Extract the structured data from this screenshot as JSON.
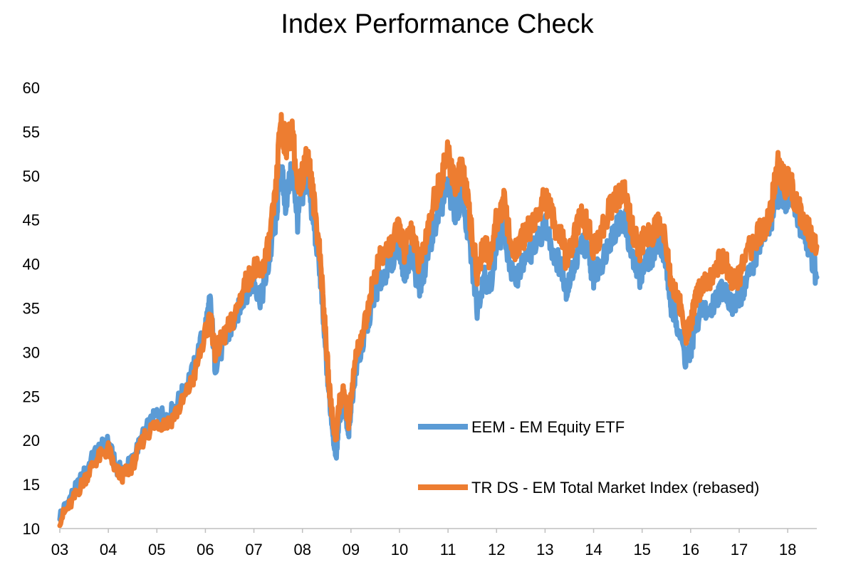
{
  "chart_data": {
    "type": "line",
    "title": "Index Performance Check",
    "xlabel": "",
    "ylabel": "",
    "ylim": [
      10,
      60
    ],
    "yticks": [
      10,
      15,
      20,
      25,
      30,
      35,
      40,
      45,
      50,
      55,
      60
    ],
    "xlim": [
      2003.0,
      2018.6
    ],
    "xticks": [
      {
        "value": 2003,
        "label": "03"
      },
      {
        "value": 2004,
        "label": "04"
      },
      {
        "value": 2005,
        "label": "05"
      },
      {
        "value": 2006,
        "label": "06"
      },
      {
        "value": 2007,
        "label": "07"
      },
      {
        "value": 2008,
        "label": "08"
      },
      {
        "value": 2009,
        "label": "09"
      },
      {
        "value": 2010,
        "label": "10"
      },
      {
        "value": 2011,
        "label": "11"
      },
      {
        "value": 2012,
        "label": "12"
      },
      {
        "value": 2013,
        "label": "13"
      },
      {
        "value": 2014,
        "label": "14"
      },
      {
        "value": 2015,
        "label": "15"
      },
      {
        "value": 2016,
        "label": "16"
      },
      {
        "value": 2017,
        "label": "17"
      },
      {
        "value": 2018,
        "label": "18"
      }
    ],
    "grid": false,
    "legend_position": "bottom-right",
    "series": [
      {
        "name": "EEM - EM Equity ETF",
        "color": "#5B9BD5",
        "points": [
          [
            2003.0,
            11.5
          ],
          [
            2003.25,
            13.8
          ],
          [
            2003.5,
            16.2
          ],
          [
            2003.75,
            18.8
          ],
          [
            2004.0,
            19.8
          ],
          [
            2004.15,
            17.0
          ],
          [
            2004.3,
            16.5
          ],
          [
            2004.5,
            17.8
          ],
          [
            2004.75,
            21.0
          ],
          [
            2005.0,
            23.0
          ],
          [
            2005.25,
            22.8
          ],
          [
            2005.5,
            25.0
          ],
          [
            2005.75,
            28.0
          ],
          [
            2006.0,
            33.0
          ],
          [
            2006.1,
            35.8
          ],
          [
            2006.2,
            28.5
          ],
          [
            2006.4,
            31.0
          ],
          [
            2006.6,
            33.5
          ],
          [
            2006.8,
            36.5
          ],
          [
            2007.0,
            38.0
          ],
          [
            2007.15,
            36.0
          ],
          [
            2007.3,
            40.0
          ],
          [
            2007.45,
            45.0
          ],
          [
            2007.55,
            51.0
          ],
          [
            2007.65,
            47.0
          ],
          [
            2007.8,
            51.0
          ],
          [
            2007.9,
            45.0
          ],
          [
            2008.0,
            48.0
          ],
          [
            2008.1,
            50.0
          ],
          [
            2008.2,
            46.0
          ],
          [
            2008.35,
            40.0
          ],
          [
            2008.45,
            32.0
          ],
          [
            2008.55,
            25.0
          ],
          [
            2008.65,
            20.0
          ],
          [
            2008.7,
            18.5
          ],
          [
            2008.75,
            22.5
          ],
          [
            2008.85,
            24.0
          ],
          [
            2008.95,
            20.5
          ],
          [
            2009.0,
            24.0
          ],
          [
            2009.1,
            28.0
          ],
          [
            2009.3,
            32.0
          ],
          [
            2009.45,
            36.0
          ],
          [
            2009.6,
            38.0
          ],
          [
            2009.8,
            40.0
          ],
          [
            2010.0,
            42.0
          ],
          [
            2010.1,
            39.0
          ],
          [
            2010.25,
            41.5
          ],
          [
            2010.4,
            37.0
          ],
          [
            2010.5,
            39.0
          ],
          [
            2010.7,
            44.0
          ],
          [
            2010.85,
            46.5
          ],
          [
            2011.0,
            48.5
          ],
          [
            2011.15,
            46.0
          ],
          [
            2011.3,
            47.5
          ],
          [
            2011.45,
            42.0
          ],
          [
            2011.6,
            35.0
          ],
          [
            2011.75,
            39.0
          ],
          [
            2011.85,
            37.0
          ],
          [
            2012.0,
            42.0
          ],
          [
            2012.15,
            44.0
          ],
          [
            2012.35,
            38.0
          ],
          [
            2012.5,
            39.5
          ],
          [
            2012.65,
            41.0
          ],
          [
            2012.8,
            42.0
          ],
          [
            2013.0,
            44.5
          ],
          [
            2013.2,
            41.0
          ],
          [
            2013.35,
            39.5
          ],
          [
            2013.45,
            37.0
          ],
          [
            2013.6,
            40.0
          ],
          [
            2013.75,
            42.5
          ],
          [
            2013.9,
            41.0
          ],
          [
            2014.0,
            38.5
          ],
          [
            2014.15,
            40.0
          ],
          [
            2014.35,
            43.0
          ],
          [
            2014.5,
            44.5
          ],
          [
            2014.65,
            45.0
          ],
          [
            2014.8,
            40.5
          ],
          [
            2014.95,
            38.5
          ],
          [
            2015.0,
            39.5
          ],
          [
            2015.2,
            41.0
          ],
          [
            2015.35,
            43.0
          ],
          [
            2015.5,
            40.0
          ],
          [
            2015.6,
            35.0
          ],
          [
            2015.75,
            33.0
          ],
          [
            2015.9,
            29.0
          ],
          [
            2016.0,
            30.0
          ],
          [
            2016.1,
            33.0
          ],
          [
            2016.25,
            35.0
          ],
          [
            2016.4,
            34.5
          ],
          [
            2016.55,
            36.5
          ],
          [
            2016.7,
            37.5
          ],
          [
            2016.85,
            35.0
          ],
          [
            2017.0,
            36.0
          ],
          [
            2017.15,
            38.0
          ],
          [
            2017.35,
            41.0
          ],
          [
            2017.5,
            43.0
          ],
          [
            2017.65,
            45.0
          ],
          [
            2017.8,
            48.0
          ],
          [
            2017.95,
            47.0
          ],
          [
            2018.05,
            48.5
          ],
          [
            2018.15,
            46.0
          ],
          [
            2018.3,
            44.0
          ],
          [
            2018.45,
            42.0
          ],
          [
            2018.6,
            38.5
          ]
        ]
      },
      {
        "name": "TR DS - EM Total Market Index (rebased)",
        "color": "#ED7D31",
        "points": [
          [
            2003.0,
            11.0
          ],
          [
            2003.25,
            13.0
          ],
          [
            2003.5,
            15.5
          ],
          [
            2003.75,
            17.8
          ],
          [
            2004.0,
            19.0
          ],
          [
            2004.15,
            16.5
          ],
          [
            2004.3,
            16.0
          ],
          [
            2004.5,
            17.2
          ],
          [
            2004.75,
            20.5
          ],
          [
            2005.0,
            22.0
          ],
          [
            2005.25,
            22.0
          ],
          [
            2005.5,
            24.0
          ],
          [
            2005.75,
            27.0
          ],
          [
            2006.0,
            32.0
          ],
          [
            2006.1,
            34.0
          ],
          [
            2006.2,
            30.0
          ],
          [
            2006.4,
            32.0
          ],
          [
            2006.6,
            34.0
          ],
          [
            2006.8,
            37.5
          ],
          [
            2007.0,
            39.5
          ],
          [
            2007.15,
            39.0
          ],
          [
            2007.3,
            42.0
          ],
          [
            2007.45,
            48.0
          ],
          [
            2007.55,
            56.5
          ],
          [
            2007.65,
            53.5
          ],
          [
            2007.8,
            55.0
          ],
          [
            2007.9,
            48.0
          ],
          [
            2008.0,
            50.0
          ],
          [
            2008.1,
            53.0
          ],
          [
            2008.2,
            48.5
          ],
          [
            2008.35,
            42.0
          ],
          [
            2008.45,
            34.0
          ],
          [
            2008.55,
            26.0
          ],
          [
            2008.65,
            21.5
          ],
          [
            2008.7,
            20.5
          ],
          [
            2008.75,
            24.0
          ],
          [
            2008.85,
            25.5
          ],
          [
            2008.95,
            22.0
          ],
          [
            2009.0,
            25.0
          ],
          [
            2009.1,
            29.5
          ],
          [
            2009.3,
            33.5
          ],
          [
            2009.45,
            38.0
          ],
          [
            2009.6,
            40.5
          ],
          [
            2009.8,
            42.0
          ],
          [
            2010.0,
            44.0
          ],
          [
            2010.1,
            41.5
          ],
          [
            2010.25,
            44.0
          ],
          [
            2010.4,
            40.0
          ],
          [
            2010.5,
            42.0
          ],
          [
            2010.7,
            47.0
          ],
          [
            2010.85,
            49.5
          ],
          [
            2011.0,
            52.5
          ],
          [
            2011.15,
            49.0
          ],
          [
            2011.3,
            51.0
          ],
          [
            2011.45,
            45.0
          ],
          [
            2011.6,
            39.0
          ],
          [
            2011.75,
            42.5
          ],
          [
            2011.85,
            40.5
          ],
          [
            2012.0,
            45.0
          ],
          [
            2012.15,
            47.0
          ],
          [
            2012.35,
            41.0
          ],
          [
            2012.5,
            42.5
          ],
          [
            2012.65,
            44.0
          ],
          [
            2012.8,
            45.0
          ],
          [
            2013.0,
            47.5
          ],
          [
            2013.2,
            44.5
          ],
          [
            2013.35,
            43.0
          ],
          [
            2013.45,
            40.0
          ],
          [
            2013.6,
            43.0
          ],
          [
            2013.75,
            45.5
          ],
          [
            2013.9,
            44.0
          ],
          [
            2014.0,
            41.5
          ],
          [
            2014.15,
            43.5
          ],
          [
            2014.35,
            46.5
          ],
          [
            2014.5,
            47.5
          ],
          [
            2014.65,
            48.0
          ],
          [
            2014.8,
            44.0
          ],
          [
            2014.95,
            41.5
          ],
          [
            2015.0,
            42.5
          ],
          [
            2015.2,
            43.5
          ],
          [
            2015.35,
            45.0
          ],
          [
            2015.5,
            42.5
          ],
          [
            2015.6,
            38.0
          ],
          [
            2015.75,
            36.0
          ],
          [
            2015.9,
            32.0
          ],
          [
            2016.0,
            33.0
          ],
          [
            2016.1,
            36.0
          ],
          [
            2016.25,
            38.0
          ],
          [
            2016.4,
            38.5
          ],
          [
            2016.55,
            40.0
          ],
          [
            2016.7,
            40.5
          ],
          [
            2016.85,
            38.0
          ],
          [
            2017.0,
            38.5
          ],
          [
            2017.15,
            41.0
          ],
          [
            2017.35,
            43.0
          ],
          [
            2017.5,
            44.0
          ],
          [
            2017.65,
            46.0
          ],
          [
            2017.8,
            51.5
          ],
          [
            2017.95,
            49.0
          ],
          [
            2018.05,
            49.5
          ],
          [
            2018.15,
            47.0
          ],
          [
            2018.3,
            45.5
          ],
          [
            2018.45,
            43.5
          ],
          [
            2018.6,
            42.0
          ]
        ]
      }
    ]
  }
}
